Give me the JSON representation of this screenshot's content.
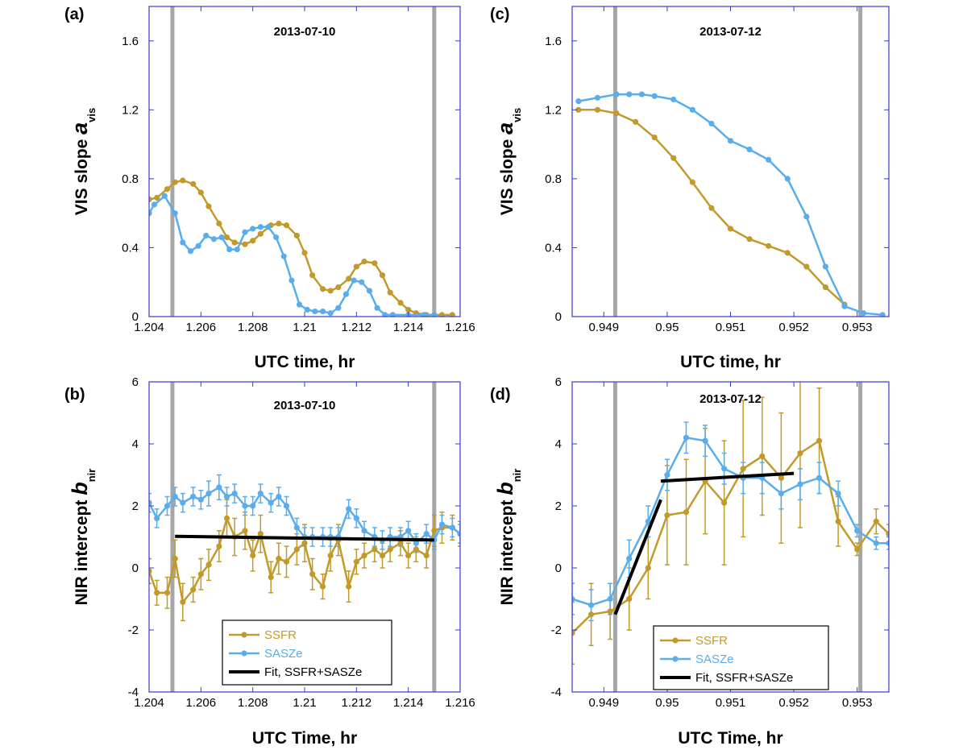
{
  "colors": {
    "ssfr": "#c29a2b",
    "saszee": "#5aadec",
    "fit": "#000000",
    "marker_line": "#a6a6a6",
    "frame": "#3a3acc"
  },
  "chart_data": [
    {
      "panel": "(a)",
      "type": "line",
      "date": "2013-07-10",
      "xlabel": "UTC time, hr",
      "ylabel_main": "VIS slope",
      "ylabel_sym": "a",
      "ylabel_sub": "vis",
      "xlim": [
        1.204,
        1.216
      ],
      "ylim": [
        0,
        1.8
      ],
      "xticks": [
        1.204,
        1.206,
        1.208,
        1.21,
        1.212,
        1.214,
        1.216
      ],
      "xtick_labels": [
        "1.204",
        "1.206",
        "1.208",
        "1.21",
        "1.212",
        "1.214",
        "1.216"
      ],
      "yticks": [
        0,
        0.4,
        0.8,
        1.2,
        1.6
      ],
      "ytick_labels": [
        "0",
        "0.4",
        "0.8",
        "1.2",
        "1.6"
      ],
      "vlines": [
        1.2049,
        1.215
      ],
      "series": [
        {
          "key": "ssfr",
          "x": [
            1.204,
            1.2043,
            1.2047,
            1.205,
            1.2053,
            1.2057,
            1.206,
            1.2063,
            1.2067,
            1.207,
            1.2073,
            1.2077,
            1.208,
            1.2083,
            1.2087,
            1.209,
            1.2093,
            1.2097,
            1.21,
            1.2103,
            1.2107,
            1.211,
            1.2113,
            1.2117,
            1.212,
            1.2123,
            1.2127,
            1.213,
            1.2133,
            1.2137,
            1.214,
            1.2143,
            1.2147,
            1.215,
            1.2153,
            1.2157
          ],
          "y": [
            0.68,
            0.69,
            0.74,
            0.78,
            0.79,
            0.77,
            0.72,
            0.64,
            0.54,
            0.46,
            0.43,
            0.42,
            0.44,
            0.48,
            0.53,
            0.54,
            0.53,
            0.47,
            0.37,
            0.24,
            0.16,
            0.15,
            0.17,
            0.22,
            0.29,
            0.32,
            0.31,
            0.24,
            0.14,
            0.08,
            0.04,
            0.02,
            0.01,
            0.01,
            0.01,
            0.01
          ]
        },
        {
          "key": "saszee",
          "x": [
            1.204,
            1.2042,
            1.2046,
            1.205,
            1.2053,
            1.2056,
            1.2059,
            1.2062,
            1.2065,
            1.2068,
            1.2071,
            1.2074,
            1.2077,
            1.208,
            1.2083,
            1.2086,
            1.2089,
            1.2092,
            1.2095,
            1.2098,
            1.2101,
            1.2104,
            1.2107,
            1.211,
            1.2113,
            1.2116,
            1.2119,
            1.2122,
            1.2125,
            1.2128,
            1.2131,
            1.2134,
            1.214,
            1.2146,
            1.215
          ],
          "y": [
            0.6,
            0.65,
            0.7,
            0.6,
            0.43,
            0.38,
            0.41,
            0.47,
            0.45,
            0.46,
            0.39,
            0.39,
            0.49,
            0.51,
            0.52,
            0.52,
            0.46,
            0.35,
            0.21,
            0.07,
            0.04,
            0.03,
            0.03,
            0.02,
            0.05,
            0.13,
            0.21,
            0.2,
            0.15,
            0.05,
            0.01,
            0.01,
            0.01,
            0.01,
            0.01
          ]
        }
      ]
    },
    {
      "panel": "(c)",
      "type": "line",
      "date": "2013-07-12",
      "xlabel": "UTC time, hr",
      "ylabel_main": "VIS slope",
      "ylabel_sym": "a",
      "ylabel_sub": "vis",
      "xlim": [
        0.9485,
        0.9535
      ],
      "ylim": [
        0,
        1.8
      ],
      "xticks": [
        0.949,
        0.95,
        0.951,
        0.952,
        0.953
      ],
      "xtick_labels": [
        "0.949",
        "0.95",
        "0.951",
        "0.952",
        "0.953"
      ],
      "yticks": [
        0,
        0.4,
        0.8,
        1.2,
        1.6
      ],
      "ytick_labels": [
        "0",
        "0.4",
        "0.8",
        "1.2",
        "1.6"
      ],
      "vlines": [
        0.94918,
        0.95305
      ],
      "series": [
        {
          "key": "ssfr",
          "x": [
            0.9486,
            0.9489,
            0.9492,
            0.9495,
            0.9498,
            0.9501,
            0.9504,
            0.9507,
            0.951,
            0.9513,
            0.9516,
            0.9519,
            0.9522,
            0.9525,
            0.9528
          ],
          "y": [
            1.2,
            1.2,
            1.18,
            1.13,
            1.04,
            0.92,
            0.78,
            0.63,
            0.51,
            0.45,
            0.41,
            0.37,
            0.29,
            0.17,
            0.07
          ]
        },
        {
          "key": "saszee",
          "x": [
            0.9486,
            0.9489,
            0.9492,
            0.9494,
            0.9496,
            0.9498,
            0.9501,
            0.9504,
            0.9507,
            0.951,
            0.9513,
            0.9516,
            0.9519,
            0.9522,
            0.9525,
            0.9528,
            0.9531,
            0.9534
          ],
          "y": [
            1.25,
            1.27,
            1.29,
            1.29,
            1.29,
            1.28,
            1.26,
            1.2,
            1.12,
            1.02,
            0.97,
            0.91,
            0.8,
            0.58,
            0.29,
            0.06,
            0.02,
            0.01
          ]
        }
      ]
    },
    {
      "panel": "(b)",
      "type": "line",
      "date": "2013-07-10",
      "xlabel": "UTC Time, hr",
      "ylabel_main": "NIR intercept",
      "ylabel_sym": "b",
      "ylabel_sub": "nir",
      "xlim": [
        1.204,
        1.216
      ],
      "ylim": [
        -4,
        6
      ],
      "xticks": [
        1.204,
        1.206,
        1.208,
        1.21,
        1.212,
        1.214,
        1.216
      ],
      "xtick_labels": [
        "1.204",
        "1.206",
        "1.208",
        "1.21",
        "1.212",
        "1.214",
        "1.216"
      ],
      "yticks": [
        -4,
        -2,
        0,
        2,
        4,
        6
      ],
      "ytick_labels": [
        "-4",
        "-2",
        "0",
        "2",
        "4",
        "6"
      ],
      "vlines": [
        1.2049,
        1.215
      ],
      "series": [
        {
          "key": "ssfr",
          "x": [
            1.204,
            1.2043,
            1.2047,
            1.205,
            1.2053,
            1.2057,
            1.206,
            1.2063,
            1.2067,
            1.207,
            1.2073,
            1.2077,
            1.208,
            1.2083,
            1.2087,
            1.209,
            1.2093,
            1.2097,
            1.21,
            1.2103,
            1.2107,
            1.211,
            1.2113,
            1.2117,
            1.212,
            1.2123,
            1.2127,
            1.213,
            1.2133,
            1.2137,
            1.214,
            1.2143,
            1.2147,
            1.215,
            1.2153,
            1.2157,
            1.216
          ],
          "y": [
            -0.1,
            -0.8,
            -0.8,
            0.3,
            -1.1,
            -0.7,
            -0.2,
            0.1,
            0.7,
            1.6,
            1.0,
            1.2,
            0.4,
            1.1,
            -0.3,
            0.3,
            0.2,
            0.6,
            0.8,
            -0.2,
            -0.6,
            0.4,
            0.9,
            -0.6,
            0.2,
            0.4,
            0.6,
            0.4,
            0.6,
            0.8,
            0.4,
            0.6,
            0.4,
            1.2,
            1.3,
            1.3,
            1.1
          ],
          "err": [
            0.4,
            0.4,
            0.5,
            0.6,
            0.6,
            0.4,
            0.5,
            0.5,
            0.5,
            0.6,
            0.6,
            0.6,
            0.5,
            0.6,
            0.5,
            0.5,
            0.5,
            0.5,
            0.6,
            0.5,
            0.4,
            0.5,
            0.5,
            0.5,
            0.4,
            0.4,
            0.4,
            0.4,
            0.4,
            0.4,
            0.4,
            0.4,
            0.4,
            0.5,
            0.5,
            0.4,
            0.4
          ]
        },
        {
          "key": "saszee",
          "x": [
            1.204,
            1.2043,
            1.2047,
            1.205,
            1.2053,
            1.2057,
            1.206,
            1.2063,
            1.2067,
            1.207,
            1.2073,
            1.2077,
            1.208,
            1.2083,
            1.2087,
            1.209,
            1.2093,
            1.2097,
            1.21,
            1.2103,
            1.2107,
            1.211,
            1.2113,
            1.2117,
            1.212,
            1.2123,
            1.2127,
            1.213,
            1.2133,
            1.2137,
            1.214,
            1.2143,
            1.2147,
            1.215,
            1.2153,
            1.2157,
            1.216
          ],
          "y": [
            2.1,
            1.6,
            2.0,
            2.3,
            2.1,
            2.3,
            2.2,
            2.4,
            2.6,
            2.3,
            2.4,
            2.0,
            2.0,
            2.4,
            2.1,
            2.3,
            2.0,
            1.3,
            1.0,
            1.0,
            1.0,
            1.0,
            1.0,
            1.9,
            1.6,
            1.2,
            1.0,
            0.9,
            1.0,
            1.0,
            1.2,
            0.8,
            1.1,
            0.9,
            1.4,
            1.3,
            1.1
          ],
          "err": [
            0.3,
            0.3,
            0.3,
            0.3,
            0.3,
            0.3,
            0.3,
            0.4,
            0.4,
            0.3,
            0.3,
            0.3,
            0.3,
            0.3,
            0.3,
            0.3,
            0.3,
            0.3,
            0.3,
            0.3,
            0.3,
            0.3,
            0.3,
            0.3,
            0.3,
            0.3,
            0.3,
            0.3,
            0.3,
            0.3,
            0.3,
            0.3,
            0.3,
            0.3,
            0.3,
            0.3,
            0.3
          ]
        }
      ],
      "fit": [
        {
          "x": [
            1.205,
            1.215
          ],
          "y": [
            1.02,
            0.9
          ]
        }
      ],
      "legend": {
        "entries": [
          "SSFR",
          "SASZe",
          "Fit, SSFR+SASZe"
        ],
        "placement": "bottom-center"
      }
    },
    {
      "panel": "(d)",
      "type": "line",
      "date": "2013-07-12",
      "xlabel": "UTC Time, hr",
      "ylabel_main": "NIR intercept",
      "ylabel_sym": "b",
      "ylabel_sub": "nir",
      "xlim": [
        0.9485,
        0.9535
      ],
      "ylim": [
        -4,
        6
      ],
      "xticks": [
        0.949,
        0.95,
        0.951,
        0.952,
        0.953
      ],
      "xtick_labels": [
        "0.949",
        "0.95",
        "0.951",
        "0.952",
        "0.953"
      ],
      "yticks": [
        -4,
        -2,
        0,
        2,
        4,
        6
      ],
      "ytick_labels": [
        "-4",
        "-2",
        "0",
        "2",
        "4",
        "6"
      ],
      "vlines": [
        0.94918,
        0.95305
      ],
      "series": [
        {
          "key": "ssfr",
          "x": [
            0.9485,
            0.9488,
            0.9491,
            0.9494,
            0.9497,
            0.95,
            0.9503,
            0.9506,
            0.9509,
            0.9512,
            0.9515,
            0.9518,
            0.9521,
            0.9524,
            0.9527,
            0.953,
            0.9533,
            0.9535
          ],
          "y": [
            -2.1,
            -1.5,
            -1.4,
            -1.0,
            0.0,
            1.7,
            1.8,
            2.8,
            2.1,
            3.2,
            3.6,
            2.9,
            3.7,
            4.1,
            1.5,
            0.6,
            1.5,
            1.1
          ],
          "err": [
            1.0,
            1.0,
            0.9,
            1.0,
            1.0,
            1.6,
            1.7,
            1.7,
            2.0,
            2.2,
            1.9,
            2.1,
            2.4,
            1.7,
            0.8,
            0.2,
            0.4,
            0.3
          ]
        },
        {
          "key": "saszee",
          "x": [
            0.9485,
            0.9488,
            0.9491,
            0.9494,
            0.9497,
            0.95,
            0.9503,
            0.9506,
            0.9509,
            0.9512,
            0.9515,
            0.9518,
            0.9521,
            0.9524,
            0.9527,
            0.953,
            0.9533,
            0.9535
          ],
          "y": [
            -1.0,
            -1.2,
            -1.0,
            0.3,
            1.5,
            3.0,
            4.2,
            4.1,
            3.2,
            2.9,
            2.9,
            2.4,
            2.7,
            2.9,
            2.4,
            1.2,
            0.8,
            0.8
          ],
          "err": [
            0.5,
            0.5,
            0.5,
            0.6,
            0.5,
            0.5,
            0.5,
            0.5,
            0.5,
            0.5,
            0.5,
            0.5,
            0.5,
            0.5,
            0.4,
            0.2,
            0.2,
            0.2
          ]
        }
      ],
      "fit": [
        {
          "x": [
            0.94918,
            0.9499
          ],
          "y": [
            -1.5,
            2.2
          ]
        },
        {
          "x": [
            0.9499,
            0.952
          ],
          "y": [
            2.8,
            3.05
          ]
        }
      ],
      "legend": {
        "entries": [
          "SSFR",
          "SASZe",
          "Fit, SSFR+SASZe"
        ],
        "placement": "bottom-center"
      }
    }
  ]
}
